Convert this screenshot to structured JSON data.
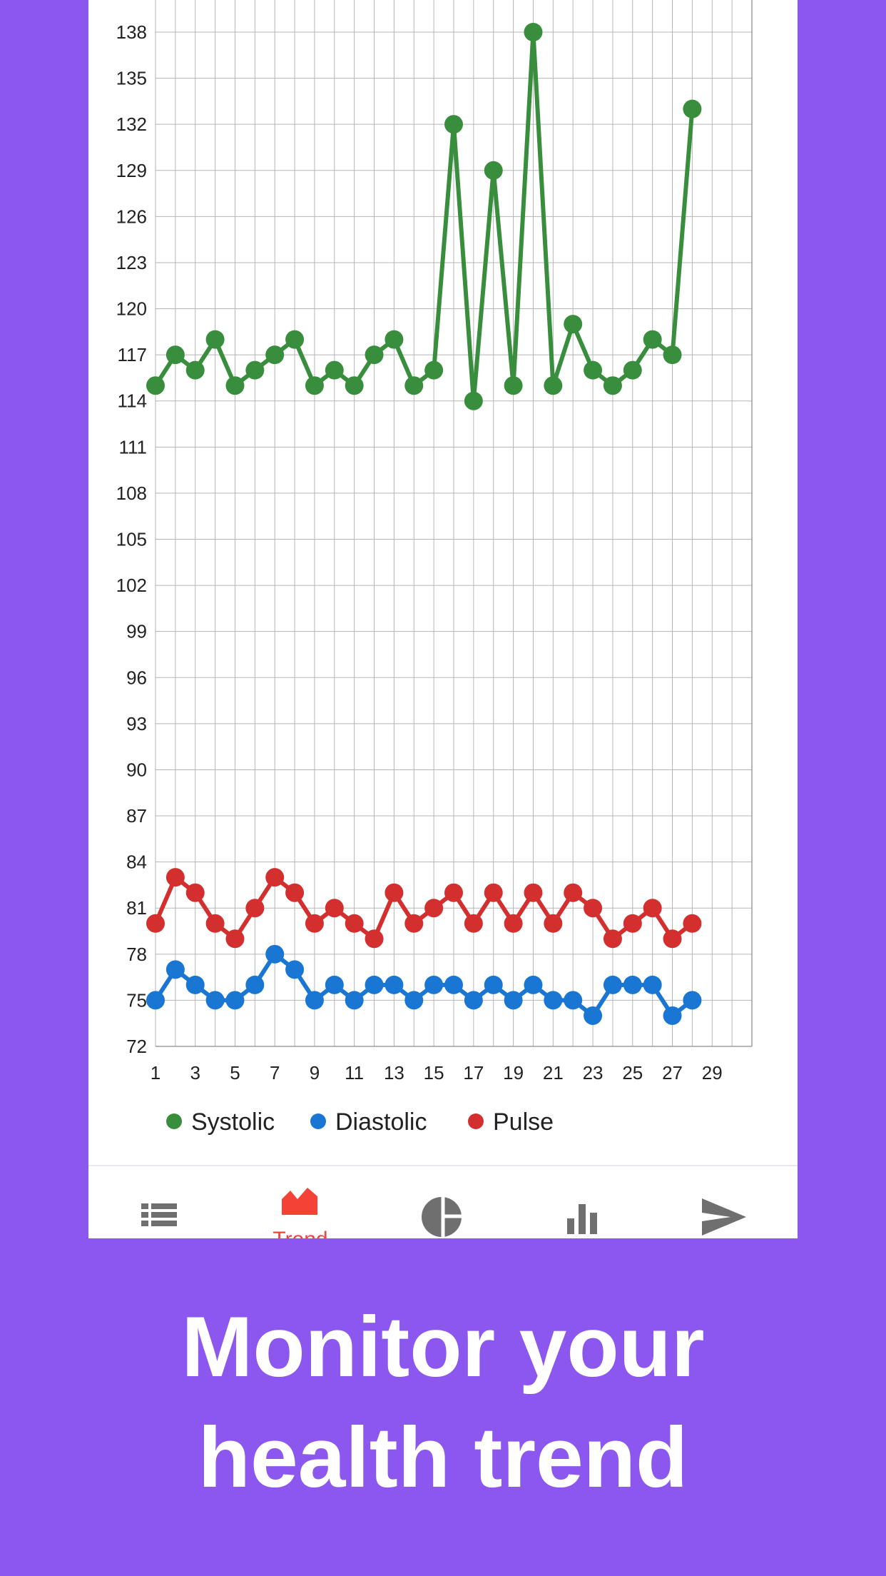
{
  "caption": {
    "line1": "Monitor your",
    "line2": "health trend"
  },
  "colors": {
    "background": "#8c57ee",
    "systolic": "#388e3c",
    "diastolic": "#1976d2",
    "pulse": "#d32f2f",
    "nav_active": "#f44336",
    "nav_inactive": "#6f6f6f"
  },
  "bottom_nav": {
    "items": [
      {
        "icon": "list-icon",
        "label": "",
        "active": false
      },
      {
        "icon": "trend-icon",
        "label": "Trend",
        "active": true
      },
      {
        "icon": "pie-chart-icon",
        "label": "",
        "active": false
      },
      {
        "icon": "bar-chart-icon",
        "label": "",
        "active": false
      },
      {
        "icon": "send-icon",
        "label": "",
        "active": false
      }
    ]
  },
  "chart_data": {
    "type": "line",
    "x_ticks": [
      1,
      3,
      5,
      7,
      9,
      11,
      13,
      15,
      17,
      19,
      21,
      23,
      25,
      27,
      29
    ],
    "y_ticks": [
      72,
      75,
      78,
      81,
      84,
      87,
      90,
      93,
      96,
      99,
      102,
      105,
      108,
      111,
      114,
      117,
      120,
      123,
      126,
      129,
      132,
      135,
      138
    ],
    "xlim": [
      1,
      31
    ],
    "ylim": [
      72,
      138
    ],
    "grid": true,
    "legend_position": "bottom-left",
    "x": [
      1,
      2,
      3,
      4,
      5,
      6,
      7,
      8,
      9,
      10,
      11,
      12,
      13,
      14,
      15,
      16,
      17,
      18,
      19,
      20,
      21,
      22,
      23,
      24,
      25,
      26,
      27,
      28
    ],
    "series": [
      {
        "name": "Systolic",
        "color": "#388e3c",
        "values": [
          115,
          117,
          116,
          118,
          115,
          116,
          117,
          118,
          115,
          116,
          115,
          117,
          118,
          115,
          116,
          132,
          114,
          129,
          115,
          138,
          115,
          119,
          116,
          115,
          116,
          118,
          117,
          133
        ]
      },
      {
        "name": "Diastolic",
        "color": "#1976d2",
        "values": [
          75,
          77,
          76,
          75,
          75,
          76,
          78,
          77,
          75,
          76,
          75,
          76,
          76,
          75,
          76,
          76,
          75,
          76,
          75,
          76,
          75,
          75,
          74,
          76,
          76,
          76,
          74,
          75
        ]
      },
      {
        "name": "Pulse",
        "color": "#d32f2f",
        "values": [
          80,
          83,
          82,
          80,
          79,
          81,
          83,
          82,
          80,
          81,
          80,
          79,
          82,
          80,
          81,
          82,
          80,
          82,
          80,
          82,
          80,
          82,
          81,
          79,
          80,
          81,
          79,
          80
        ]
      }
    ]
  }
}
